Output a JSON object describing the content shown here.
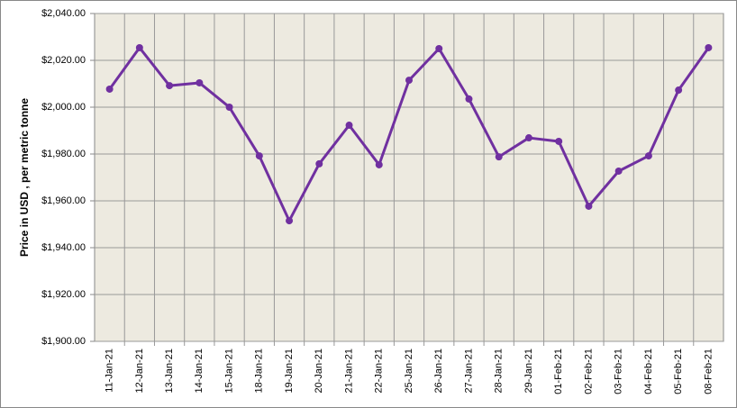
{
  "chart_data": {
    "type": "line",
    "y_label": "Price in USD , per metric tonne",
    "categories": [
      "11-Jan-21",
      "12-Jan-21",
      "13-Jan-21",
      "14-Jan-21",
      "15-Jan-21",
      "18-Jan-21",
      "19-Jan-21",
      "20-Jan-21",
      "21-Jan-21",
      "22-Jan-21",
      "25-Jan-21",
      "26-Jan-21",
      "27-Jan-21",
      "28-Jan-21",
      "29-Jan-21",
      "01-Feb-21",
      "02-Feb-21",
      "03-Feb-21",
      "04-Feb-21",
      "05-Feb-21",
      "08-Feb-21"
    ],
    "series": [
      {
        "color": "#7030a0",
        "values": [
          2007.7,
          2025.4,
          2009.2,
          2010.4,
          2000,
          1979.2,
          1951.5,
          1975.8,
          1992.3,
          1975.4,
          2011.5,
          2025,
          2003.5,
          1978.8,
          1986.9,
          1985.4,
          1957.7,
          1972.7,
          1979.2,
          2007.3,
          2025.4
        ]
      }
    ],
    "ylim": [
      1900,
      2040
    ],
    "yticks": [
      {
        "value": 1900,
        "label": "$1,900.00"
      },
      {
        "value": 1920,
        "label": "$1,920.00"
      },
      {
        "value": 1940,
        "label": "$1,940.00"
      },
      {
        "value": 1960,
        "label": "$1,960.00"
      },
      {
        "value": 1980,
        "label": "$1,980.00"
      },
      {
        "value": 2000,
        "label": "$2,000.00"
      },
      {
        "value": 2020,
        "label": "$2,020.00"
      },
      {
        "value": 2040,
        "label": "$2,040.00"
      }
    ],
    "grid": true
  }
}
